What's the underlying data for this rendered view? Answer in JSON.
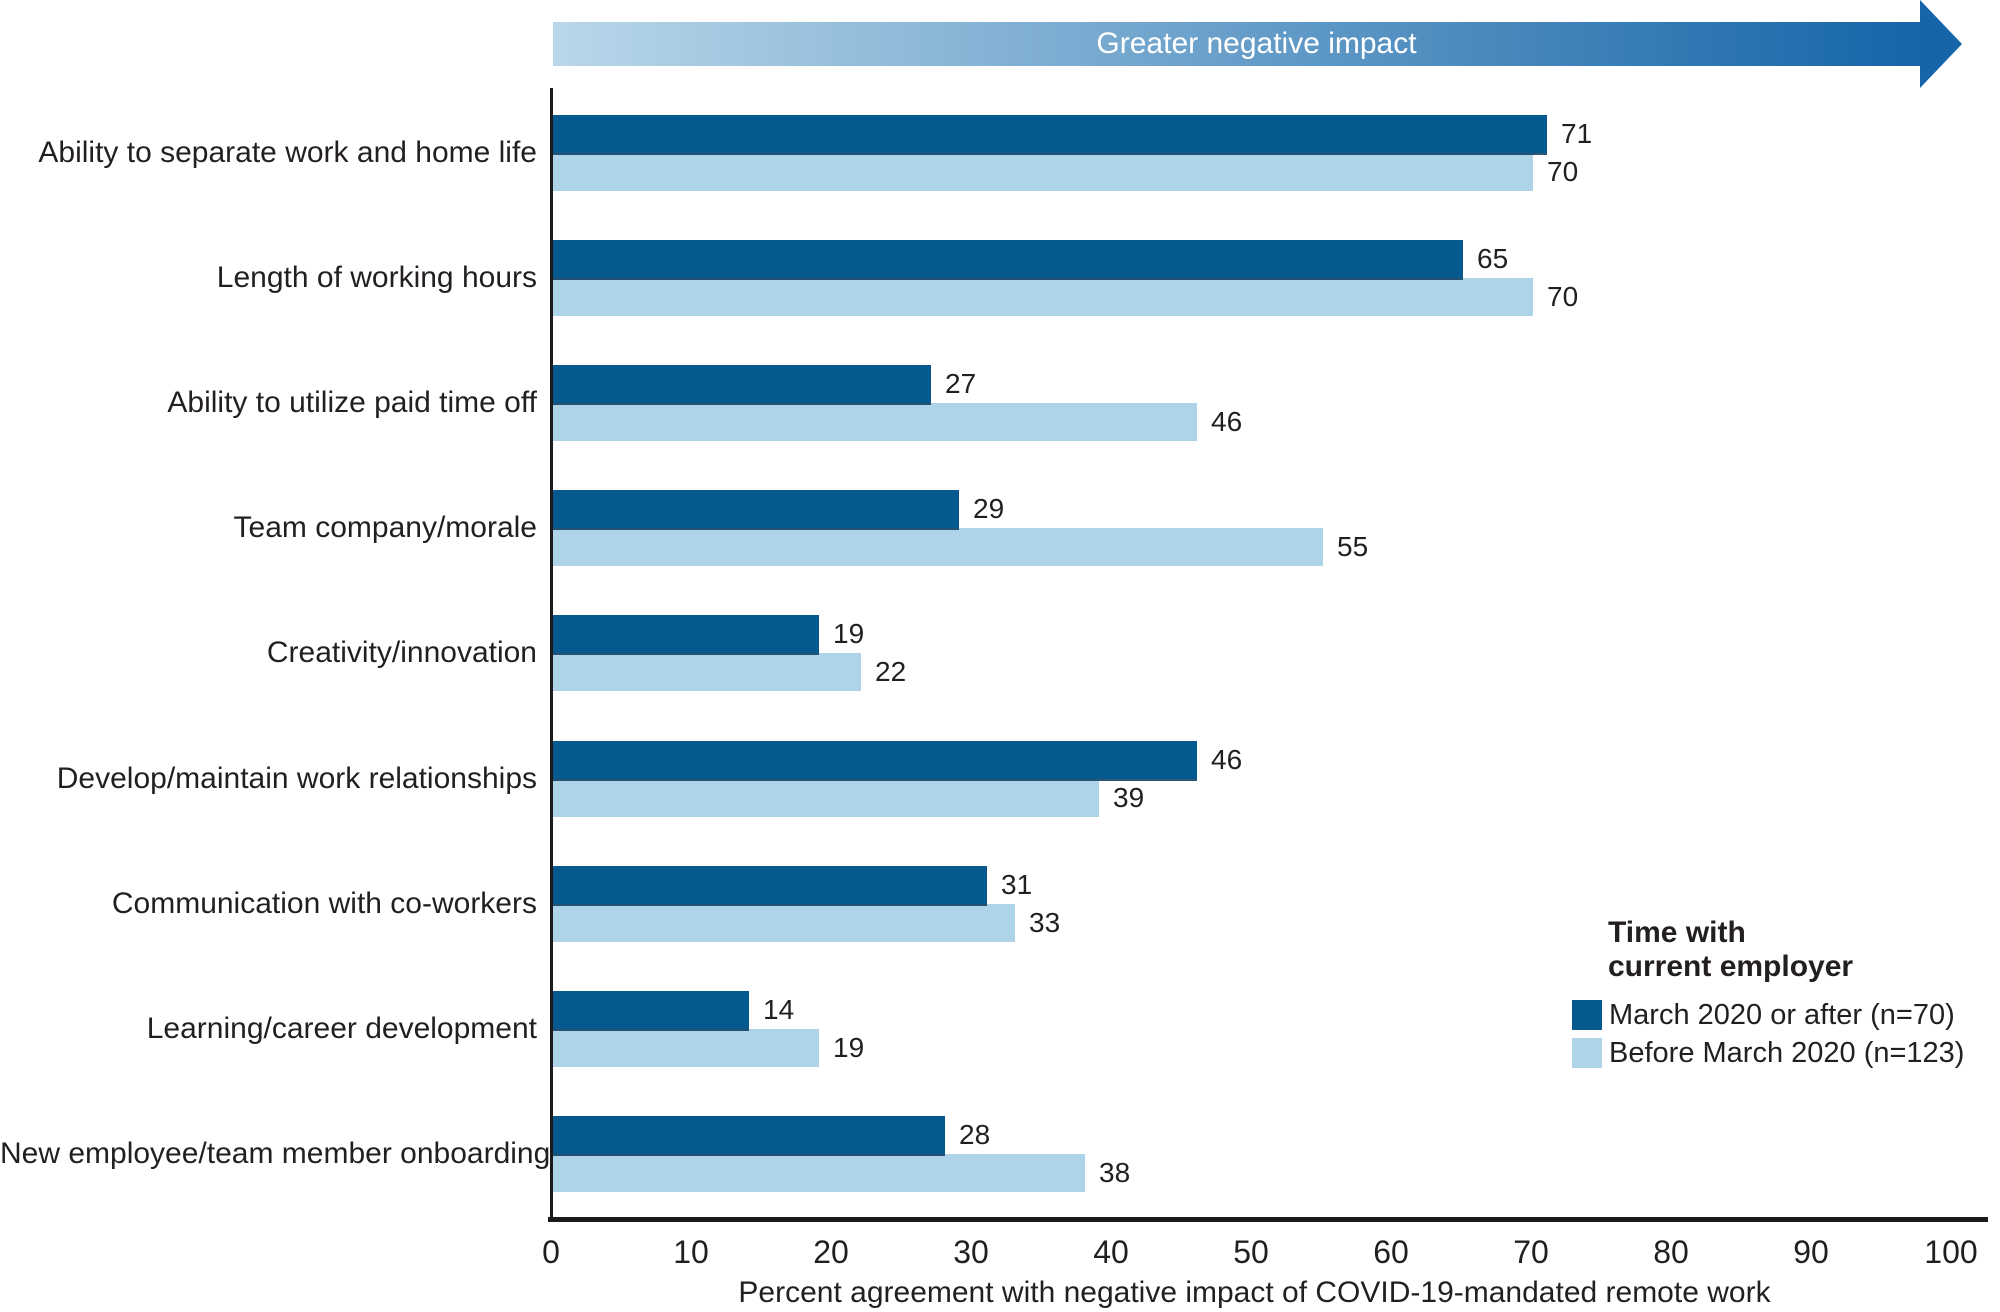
{
  "figure": {
    "arrow_label": "Greater negative impact"
  },
  "legend": {
    "title_line1": "Time with",
    "title_line2": "current employer"
  },
  "colors": {
    "dark_blue": "#05598f",
    "light_blue": "#aed4e9",
    "arrow_gradient_start": "#b9d7ea",
    "arrow_gradient_end": "#1565a8",
    "text": "#231f20",
    "axis": "#1a1a1a"
  },
  "chart_data": {
    "type": "bar",
    "orientation": "horizontal",
    "title": "",
    "xlabel": "Percent agreement with negative impact of COVID-19-mandated remote work",
    "xlim": [
      0,
      100
    ],
    "xticks": [
      0,
      10,
      20,
      30,
      40,
      50,
      60,
      70,
      80,
      90,
      100
    ],
    "grid": false,
    "value_labels": true,
    "annotation": "Greater negative impact",
    "legend_title": "Time with current employer",
    "legend_position": "right",
    "categories": [
      "Ability to separate work and home life",
      "Length of working hours",
      "Ability to utilize paid time off",
      "Team company/morale",
      "Creativity/innovation",
      "Develop/maintain work relationships",
      "Communication with co-workers",
      "Learning/career development",
      "New employee/team member onboarding"
    ],
    "series": [
      {
        "name": "March 2020 or after (n=70)",
        "color": "#05598f",
        "values": [
          71,
          65,
          27,
          29,
          19,
          46,
          31,
          14,
          28
        ]
      },
      {
        "name": "Before March 2020 (n=123)",
        "color": "#aed4e9",
        "values": [
          70,
          70,
          46,
          55,
          22,
          39,
          33,
          19,
          38
        ]
      }
    ]
  }
}
